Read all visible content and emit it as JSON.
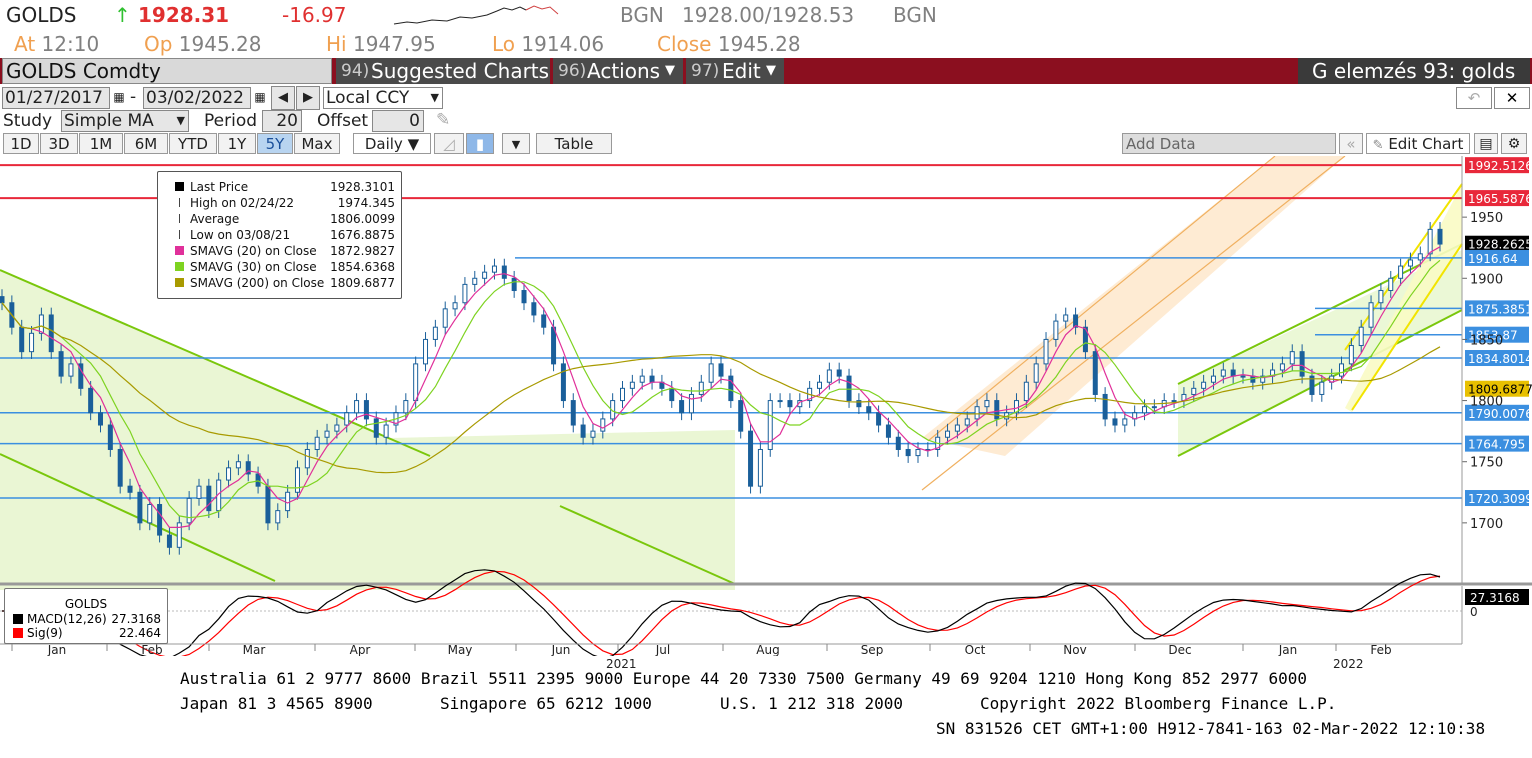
{
  "header": {
    "ticker": "GOLDS",
    "arrow": "↑",
    "last": "1928.31",
    "change": "-16.97",
    "src1": "BGN",
    "bid_ask": "1928.00/1928.53",
    "src2": "BGN",
    "at_label": "At",
    "at_value": "12:10",
    "op_label": "Op",
    "op_value": "1945.28",
    "hi_label": "Hi",
    "hi_value": "1947.95",
    "lo_label": "Lo",
    "lo_value": "1914.06",
    "close_label": "Close",
    "close_value": "1945.28"
  },
  "menubar": {
    "security": "GOLDS Comdty",
    "suggested_num": "94)",
    "suggested": "Suggested Charts",
    "actions_num": "96)",
    "actions": "Actions",
    "edit_num": "97)",
    "edit": "Edit",
    "title": "G elemzés 93: golds"
  },
  "controls": {
    "start_date": "01/27/2017",
    "dash": "-",
    "end_date": "03/02/2022",
    "currency": "Local CCY",
    "study_label": "Study",
    "study_value": "Simple MA",
    "period_label": "Period",
    "period_value": "20",
    "offset_label": "Offset",
    "offset_value": "0"
  },
  "toolbar": {
    "ranges": [
      "1D",
      "3D",
      "1M",
      "6M",
      "YTD",
      "1Y",
      "5Y",
      "Max"
    ],
    "active_range": "5Y",
    "frequency": "Daily ▼",
    "table": "Table",
    "add_data": "Add Data",
    "edit_chart": "Edit Chart"
  },
  "legend": {
    "rows": [
      {
        "label": "Last Price",
        "value": "1928.3101",
        "color": "#000000",
        "icon": "square"
      },
      {
        "label": "High on 02/24/22",
        "value": "1974.345",
        "color": "#444444",
        "icon": "high"
      },
      {
        "label": "Average",
        "value": "1806.0099",
        "color": "#444444",
        "icon": "avg"
      },
      {
        "label": "Low on 03/08/21",
        "value": "1676.8875",
        "color": "#444444",
        "icon": "low"
      },
      {
        "label": "SMAVG (20)  on Close",
        "value": "1872.9827",
        "color": "#e0309a",
        "icon": "square"
      },
      {
        "label": "SMAVG (30)  on Close",
        "value": "1854.6368",
        "color": "#7ed321",
        "icon": "square"
      },
      {
        "label": "SMAVG (200)  on Close",
        "value": "1809.6877",
        "color": "#a89a00",
        "icon": "square"
      }
    ]
  },
  "chart_data": {
    "type": "candlestick",
    "ylim": [
      1650,
      2000
    ],
    "y_ticks": [
      1700,
      1750,
      1800,
      1850,
      1900,
      1950
    ],
    "x_months": [
      "Jan",
      "Feb",
      "Mar",
      "Apr",
      "May",
      "Jun",
      "Jul",
      "Aug",
      "Sep",
      "Oct",
      "Nov",
      "Dec",
      "Jan",
      "Feb"
    ],
    "x_years": [
      "2021",
      "2022"
    ],
    "closes": [
      1880,
      1860,
      1840,
      1855,
      1870,
      1840,
      1820,
      1830,
      1810,
      1790,
      1780,
      1760,
      1730,
      1725,
      1700,
      1715,
      1690,
      1680,
      1700,
      1720,
      1730,
      1710,
      1735,
      1745,
      1750,
      1740,
      1730,
      1700,
      1710,
      1725,
      1745,
      1760,
      1770,
      1775,
      1780,
      1790,
      1800,
      1785,
      1770,
      1780,
      1790,
      1800,
      1830,
      1850,
      1860,
      1875,
      1880,
      1895,
      1900,
      1905,
      1910,
      1900,
      1890,
      1880,
      1870,
      1860,
      1830,
      1800,
      1780,
      1770,
      1775,
      1785,
      1800,
      1810,
      1815,
      1820,
      1815,
      1810,
      1800,
      1790,
      1805,
      1815,
      1830,
      1820,
      1800,
      1775,
      1730,
      1760,
      1800,
      1800,
      1795,
      1800,
      1810,
      1815,
      1825,
      1820,
      1800,
      1795,
      1790,
      1780,
      1770,
      1760,
      1755,
      1760,
      1760,
      1770,
      1775,
      1780,
      1785,
      1795,
      1800,
      1785,
      1790,
      1800,
      1815,
      1830,
      1850,
      1865,
      1870,
      1860,
      1840,
      1805,
      1785,
      1780,
      1785,
      1790,
      1795,
      1795,
      1800,
      1800,
      1805,
      1810,
      1815,
      1820,
      1825,
      1820,
      1820,
      1815,
      1820,
      1825,
      1830,
      1840,
      1820,
      1805,
      1815,
      1820,
      1830,
      1845,
      1860,
      1880,
      1890,
      1900,
      1910,
      1915,
      1920,
      1940,
      1928
    ],
    "series": [
      {
        "name": "SMAVG (20)  on Close",
        "color": "#e0309a"
      },
      {
        "name": "SMAVG (30)  on Close",
        "color": "#7ed321"
      },
      {
        "name": "SMAVG (200)  on Close",
        "color": "#a89a00"
      }
    ],
    "price_labels": [
      {
        "value": "1992.5126",
        "style": "red"
      },
      {
        "value": "1965.5876",
        "style": "red"
      },
      {
        "value": "1928.2625",
        "style": "black"
      },
      {
        "value": "1916.64",
        "style": "blue"
      },
      {
        "value": "1875.3851",
        "style": "blue"
      },
      {
        "value": "1853.87",
        "style": "blue"
      },
      {
        "value": "1834.8014",
        "style": "blue"
      },
      {
        "value": "1809.6877",
        "style": "olive"
      },
      {
        "value": "1790.0076",
        "style": "blue"
      },
      {
        "value": "1764.795",
        "style": "blue"
      },
      {
        "value": "1720.3099",
        "style": "blue"
      }
    ],
    "macd": {
      "title": "GOLDS",
      "rows": [
        {
          "label": "MACD(12,26)",
          "value": "27.3168",
          "color": "#000000"
        },
        {
          "label": "Sig(9)",
          "value": "22.464",
          "color": "#ff0000"
        }
      ],
      "axis_zero": "0",
      "last_label": "27.3168"
    }
  },
  "footer": {
    "line1": "Australia 61 2 9777 8600 Brazil 5511 2395 9000 Europe 44 20 7330 7500 Germany 49 69 9204 1210 Hong Kong 852 2977 6000",
    "line2a": "Japan 81 3 4565 8900",
    "line2b": "Singapore 65 6212 1000",
    "line2c": "U.S. 1 212 318 2000",
    "line2d": "Copyright 2022 Bloomberg Finance L.P.",
    "line3": "SN 831526 CET  GMT+1:00 H912-7841-163 02-Mar-2022 12:10:38"
  }
}
